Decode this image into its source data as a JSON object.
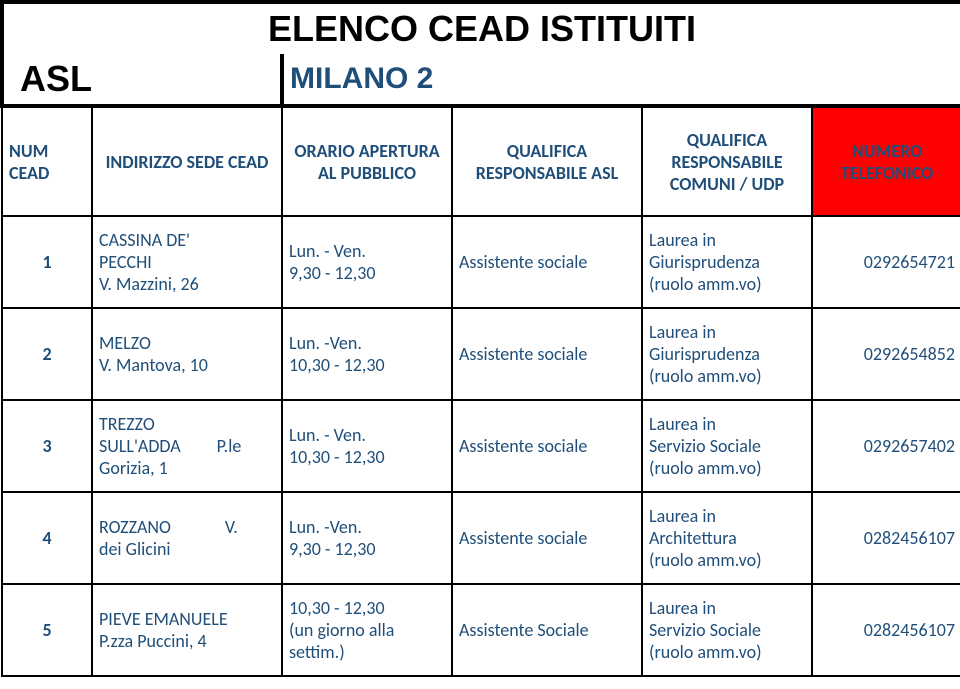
{
  "header": {
    "title": "ELENCO CEAD ISTITUITI",
    "asl_label": "ASL",
    "region": "MILANO 2"
  },
  "columns": {
    "num": "NUM CEAD",
    "addr": "INDIRIZZO SEDE CEAD",
    "orario": "ORARIO APERTURA AL PUBBLICO",
    "qual": "QUALIFICA RESPONSABILE ASL",
    "comuni": "QUALIFICA RESPONSABILE COMUNI / UDP",
    "tel": "NUMERO TELEFONICO"
  },
  "rows": [
    {
      "num": "1",
      "addr_l1": "CASSINA DE'",
      "addr_l2": "PECCHI",
      "addr_l3": "V. Mazzini, 26",
      "orario_l1": "Lun. - Ven.",
      "orario_l2": "9,30 - 12,30",
      "orario_l3": "",
      "qual": "Assistente sociale",
      "comuni_l1": "Laurea in",
      "comuni_l2": "Giurisprudenza",
      "comuni_l3": "(ruolo amm.vo)",
      "tel": "0292654721"
    },
    {
      "num": "2",
      "addr_l1": "MELZO",
      "addr_l2": "V. Mantova, 10",
      "addr_l3": "",
      "orario_l1": "Lun. -Ven.",
      "orario_l2": "10,30 - 12,30",
      "orario_l3": "",
      "qual": "Assistente sociale",
      "comuni_l1": "Laurea in",
      "comuni_l2": "Giurisprudenza",
      "comuni_l3": "(ruolo amm.vo)",
      "tel": "0292654852"
    },
    {
      "num": "3",
      "addr_l1": "TREZZO",
      "addr_l2": "SULL'ADDA  P.le",
      "addr_l3": "Gorizia, 1",
      "orario_l1": "Lun. - Ven.",
      "orario_l2": "10,30 - 12,30",
      "orario_l3": "",
      "qual": "Assistente sociale",
      "comuni_l1": "Laurea in",
      "comuni_l2": "Servizio Sociale",
      "comuni_l3": "(ruolo amm.vo)",
      "tel": "0292657402"
    },
    {
      "num": "4",
      "addr_l1": "ROZZANO   V.",
      "addr_l2": "dei Glicini",
      "addr_l3": "",
      "orario_l1": "Lun. -Ven.",
      "orario_l2": "9,30 - 12,30",
      "orario_l3": "",
      "qual": "Assistente sociale",
      "comuni_l1": "Laurea in",
      "comuni_l2": "Architettura",
      "comuni_l3": "(ruolo amm.vo)",
      "tel": "0282456107"
    },
    {
      "num": "5",
      "addr_l1": "PIEVE EMANUELE",
      "addr_l2": "P.zza Puccini, 4",
      "addr_l3": "",
      "orario_l1": "10,30 - 12,30",
      "orario_l2": "(un giorno alla",
      "orario_l3": "settim.)",
      "qual": "Assistente Sociale",
      "comuni_l1": "Laurea in",
      "comuni_l2": "Servizio Sociale",
      "comuni_l3": "(ruolo amm.vo)",
      "tel": "0282456107"
    }
  ],
  "style": {
    "title_color": "#000000",
    "accent_color": "#1f4e79",
    "tel_header_bg": "#ff0000",
    "border_color": "#000000",
    "background": "#ffffff",
    "title_fontsize": 36,
    "header_fontsize": 18,
    "cell_fontsize": 18
  }
}
